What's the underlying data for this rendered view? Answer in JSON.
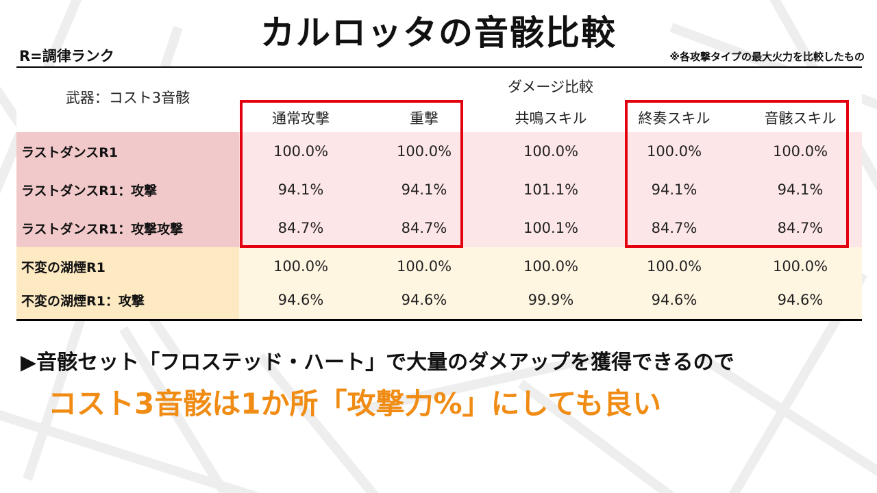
{
  "title": "カルロッタの音骸比較",
  "subtitle_left": "R=調律ランク",
  "subtitle_right": "※各攻撃タイプの最大火力を比較したもの",
  "table": {
    "corner_label": "武器：コスト3音骸",
    "group_label": "ダメージ比較",
    "columns": [
      "通常攻撃",
      "重撃",
      "共鳴スキル",
      "終奏スキル",
      "音骸スキル"
    ],
    "rows": [
      {
        "label": "ラストダンスR1",
        "values": [
          "100.0%",
          "100.0%",
          "100.0%",
          "100.0%",
          "100.0%"
        ],
        "group": "pink"
      },
      {
        "label": "ラストダンスR1：攻撃",
        "values": [
          "94.1%",
          "94.1%",
          "101.1%",
          "94.1%",
          "94.1%"
        ],
        "group": "pink"
      },
      {
        "label": "ラストダンスR1：攻撃攻撃",
        "values": [
          "84.7%",
          "84.7%",
          "100.1%",
          "84.7%",
          "84.7%"
        ],
        "group": "pink"
      },
      {
        "label": "不変の湖煙R1",
        "values": [
          "100.0%",
          "100.0%",
          "100.0%",
          "100.0%",
          "100.0%"
        ],
        "group": "cream"
      },
      {
        "label": "不変の湖煙R1：攻撃",
        "values": [
          "94.6%",
          "94.6%",
          "99.9%",
          "94.6%",
          "94.6%"
        ],
        "group": "cream"
      }
    ]
  },
  "note1": "▶音骸セット「フロステッド・ハート」で大量のダメアップを獲得できるので",
  "note2": "コスト3音骸は1か所「攻撃力%」にしても良い",
  "colors": {
    "highlight_box": "#e3000f",
    "accent_text": "#f08c14",
    "pink_row": "#fde6e7",
    "pink_label": "#f2c9cb",
    "cream_row": "#fff6e2",
    "cream_label": "#fde9c2"
  }
}
